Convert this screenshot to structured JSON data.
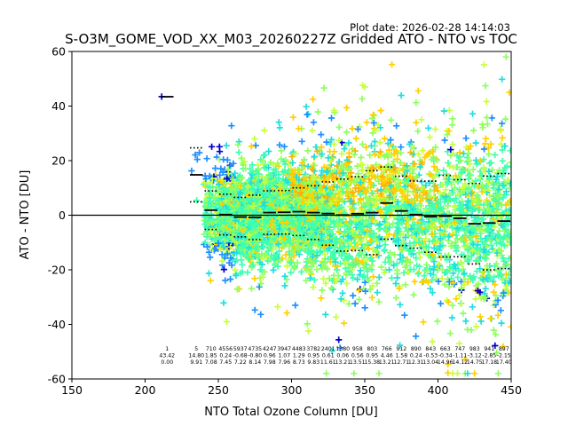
{
  "chart_data": {
    "type": "scatter",
    "title": "S-O3M_GOME_VOD_XX_M03_20260227Z Gridded ATO - NTO vs TOC",
    "plot_date": "Plot date: 2026-02-28 14:14:03",
    "xlabel": "NTO Total Ozone Column [DU]",
    "ylabel": "ATO - NTO [DU]",
    "xlim": [
      150,
      450
    ],
    "ylim": [
      -60,
      60
    ],
    "xticks": [
      150,
      200,
      250,
      300,
      350,
      400,
      450
    ],
    "yticks": [
      -60,
      -40,
      -20,
      0,
      20,
      40,
      60
    ],
    "zero_line": 0,
    "colors": {
      "dark_blue": "#0000cc",
      "blue": "#1f8fff",
      "cyan": "#1fdfdf",
      "aqua_green": "#3fffb0",
      "light_green": "#8fff5f",
      "yellow_green": "#c8ff3f",
      "gold": "#ffd000",
      "dark_gold": "#ffb000"
    },
    "bins": [
      {
        "x": 215,
        "n": "1",
        "mean": 43.42,
        "std": 0.0
      },
      {
        "x": 235,
        "n": "5",
        "mean": 14.8,
        "std": 9.91
      },
      {
        "x": 245,
        "n": "710",
        "mean": 1.85,
        "std": 7.08
      },
      {
        "x": 255,
        "n": "4556",
        "mean": 0.24,
        "std": 7.45
      },
      {
        "x": 265,
        "n": "5937",
        "mean": -0.68,
        "std": 7.22
      },
      {
        "x": 275,
        "n": "4735",
        "mean": -0.8,
        "std": 8.14
      },
      {
        "x": 285,
        "n": "4247",
        "mean": 0.96,
        "std": 7.98
      },
      {
        "x": 295,
        "n": "3947",
        "mean": 1.07,
        "std": 7.96
      },
      {
        "x": 305,
        "n": "4483",
        "mean": 1.29,
        "std": 8.73
      },
      {
        "x": 315,
        "n": "3782",
        "mean": 0.95,
        "std": 9.83
      },
      {
        "x": 325,
        "n": "2401",
        "mean": 0.61,
        "std": 11.61
      },
      {
        "x": 335,
        "n": "1380",
        "mean": 0.06,
        "std": 13.21
      },
      {
        "x": 345,
        "n": "958",
        "mean": 0.56,
        "std": 13.51
      },
      {
        "x": 355,
        "n": "803",
        "mean": 0.95,
        "std": 15.38
      },
      {
        "x": 365,
        "n": "766",
        "mean": 4.46,
        "std": 13.21
      },
      {
        "x": 375,
        "n": "912",
        "mean": 1.58,
        "std": 12.71
      },
      {
        "x": 385,
        "n": "890",
        "mean": 0.24,
        "std": 12.31
      },
      {
        "x": 395,
        "n": "843",
        "mean": -0.53,
        "std": 13.04
      },
      {
        "x": 405,
        "n": "663",
        "mean": -0.34,
        "std": 14.96
      },
      {
        "x": 415,
        "n": "747",
        "mean": -1.11,
        "std": 14.12
      },
      {
        "x": 425,
        "n": "983",
        "mean": -3.12,
        "std": 14.75
      },
      {
        "x": 435,
        "n": "941",
        "mean": -2.85,
        "std": 17.18
      },
      {
        "x": 445,
        "n": "897",
        "mean": -2.15,
        "std": 17.4
      }
    ]
  }
}
